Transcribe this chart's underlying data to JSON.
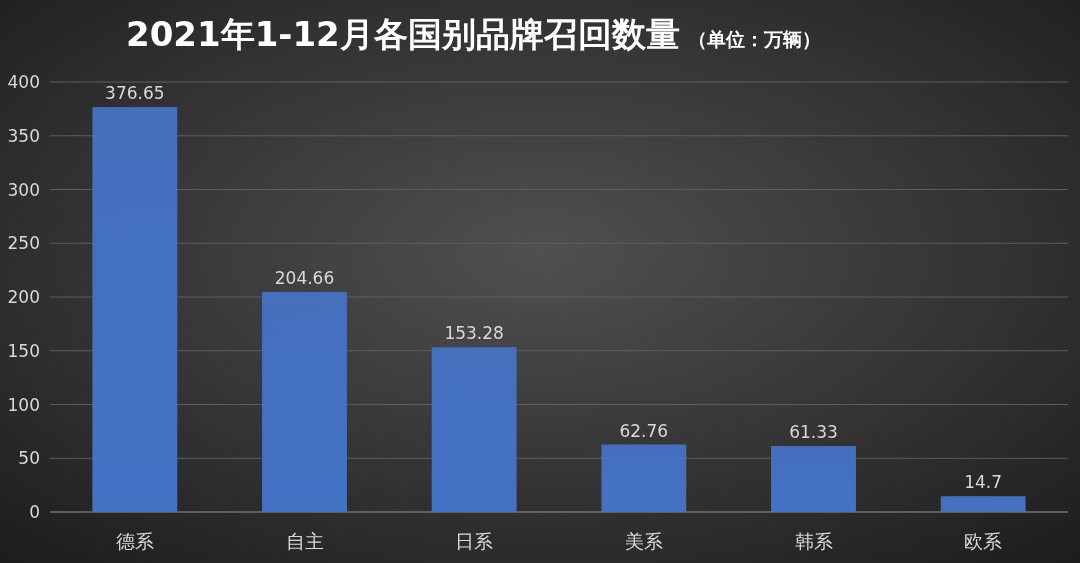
{
  "chart_data": {
    "type": "bar",
    "title": "2021年1-12月各国别品牌召回数量",
    "subtitle": "（单位：万辆）",
    "categories": [
      "德系",
      "自主",
      "日系",
      "美系",
      "韩系",
      "欧系"
    ],
    "values": [
      376.65,
      204.66,
      153.28,
      62.76,
      61.33,
      14.7
    ],
    "color": "#4472c4",
    "ylim": [
      0,
      400
    ],
    "yticks": [
      0,
      50,
      100,
      150,
      200,
      250,
      300,
      350,
      400
    ],
    "grid": "y",
    "data_labels": true
  }
}
